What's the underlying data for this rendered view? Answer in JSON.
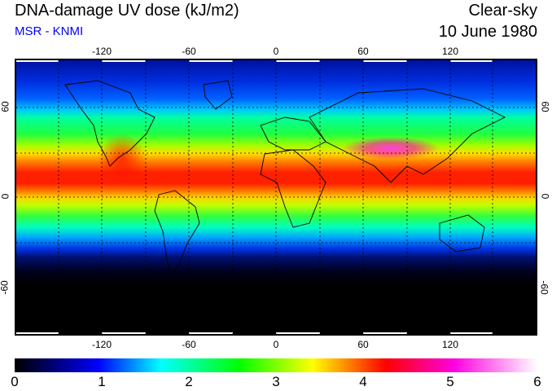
{
  "header": {
    "title": "DNA-damage UV dose (kJ/m2)",
    "source": "MSR - KNMI",
    "condition": "Clear-sky",
    "date": "10 June 1980"
  },
  "map": {
    "lon_ticks": [
      "-120",
      "-60",
      "0",
      "60",
      "120"
    ],
    "lat_ticks": [
      "60",
      "0",
      "-60"
    ],
    "colors": {
      "high": "#ff00e0",
      "low": "#000000"
    }
  },
  "colorbar": {
    "labels": [
      "0",
      "1",
      "2",
      "3",
      "4",
      "5",
      "6"
    ],
    "range": [
      0,
      6
    ],
    "unit": "kJ/m2"
  }
}
